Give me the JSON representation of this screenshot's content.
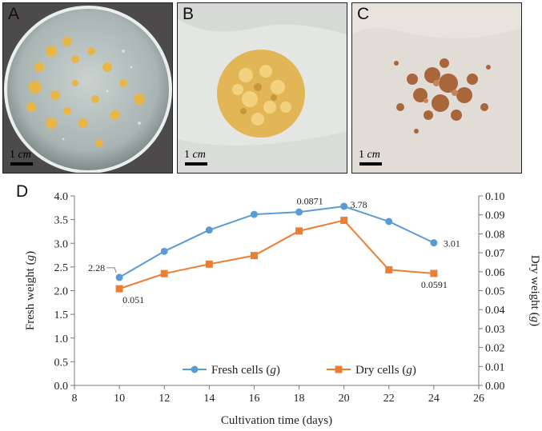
{
  "panels": [
    {
      "letter": "A",
      "scale_value": "1",
      "scale_unit": "cm"
    },
    {
      "letter": "B",
      "scale_value": "1",
      "scale_unit": "cm"
    },
    {
      "letter": "C",
      "scale_value": "1",
      "scale_unit": "cm"
    }
  ],
  "chart_label": "D",
  "chart_data": {
    "type": "line",
    "x": [
      10,
      12,
      14,
      16,
      18,
      20,
      22,
      24
    ],
    "xlim": [
      8,
      26
    ],
    "xticks": [
      "8",
      "10",
      "12",
      "14",
      "16",
      "18",
      "20",
      "22",
      "24",
      "26"
    ],
    "xlabel": "Cultivation time (days)",
    "ylabel_left": "Fresh weight (g)",
    "ylabel_right": "Dry weight (g)",
    "ylim_left": [
      0.0,
      4.0
    ],
    "ylim_right": [
      0.0,
      0.1
    ],
    "yticks_left": [
      "0.0",
      "0.5",
      "1.0",
      "1.5",
      "2.0",
      "2.5",
      "3.0",
      "3.5",
      "4.0"
    ],
    "yticks_right": [
      "0.00",
      "0.01",
      "0.02",
      "0.03",
      "0.04",
      "0.05",
      "0.06",
      "0.07",
      "0.08",
      "0.09",
      "0.10"
    ],
    "series": [
      {
        "name": "Fresh cells (g)",
        "axis": "left",
        "color": "#5b9bd5",
        "marker": "circle",
        "values": [
          2.28,
          2.83,
          3.28,
          3.61,
          3.66,
          3.78,
          3.46,
          3.01
        ]
      },
      {
        "name": "Dry cells (g)",
        "axis": "right",
        "color": "#ed7d31",
        "marker": "square",
        "values": [
          0.051,
          0.059,
          0.064,
          0.0685,
          0.0815,
          0.0871,
          0.061,
          0.0591
        ]
      }
    ],
    "annotations": [
      {
        "text": "2.28",
        "series": 0,
        "index": 0
      },
      {
        "text": "3.78",
        "series": 0,
        "index": 5
      },
      {
        "text": "3.01",
        "series": 0,
        "index": 7
      },
      {
        "text": "0.051",
        "series": 1,
        "index": 0
      },
      {
        "text": "0.0871",
        "series": 1,
        "index": 5
      },
      {
        "text": "0.0591",
        "series": 1,
        "index": 7
      }
    ],
    "legend": [
      {
        "label": "Fresh cells (",
        "unit": "g",
        "close": ")"
      },
      {
        "label": "Dry cells (",
        "unit": "g",
        "close": ")"
      }
    ],
    "legend_placement": "bottom-center",
    "grid": false
  }
}
